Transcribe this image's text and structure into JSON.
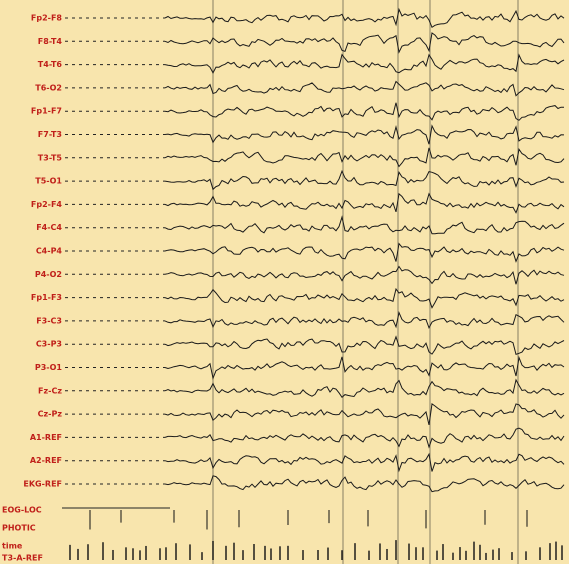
{
  "channels": [
    "Fp2-F8",
    "F8-T4",
    "T4-T6",
    "T6-O2",
    "Fp1-F7",
    "F7-T3",
    "T3-T5",
    "T5-O1",
    "Fp2-F4",
    "F4-C4",
    "C4-P4",
    "P4-O2",
    "Fp1-F3",
    "F3-C3",
    "C3-P3",
    "P3-O1",
    "Fz-Cz",
    "Cz-Pz",
    "A1-REF",
    "A2-REF",
    "EKG-REF"
  ],
  "bottom_labels": [
    "EOG-LOC",
    "PHOTIC",
    "time",
    "T3-A-REF"
  ]
}
